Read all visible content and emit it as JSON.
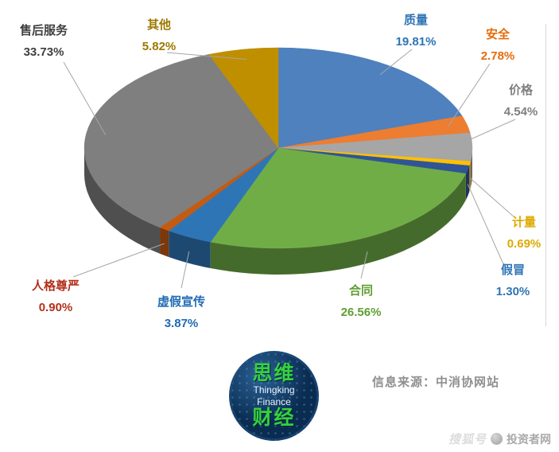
{
  "chart_data": {
    "type": "pie",
    "style": "3d-pie",
    "title": "",
    "legend_position": "none",
    "start_angle_deg": 0,
    "direction": "clockwise",
    "slices": [
      {
        "label": "质量",
        "value": 19.81,
        "display": "19.81%",
        "color": "#4E81BD",
        "label_color": "#2E74B5"
      },
      {
        "label": "安全",
        "value": 2.78,
        "display": "2.78%",
        "color": "#ED7D31",
        "label_color": "#E46C0A"
      },
      {
        "label": "价格",
        "value": 4.54,
        "display": "4.54%",
        "color": "#A6A6A6",
        "label_color": "#7F7F7F"
      },
      {
        "label": "计量",
        "value": 0.69,
        "display": "0.69%",
        "color": "#FFC000",
        "label_color": "#DDAA00"
      },
      {
        "label": "假冒",
        "value": 1.3,
        "display": "1.30%",
        "color": "#2F5597",
        "label_color": "#2E74B5"
      },
      {
        "label": "合同",
        "value": 26.56,
        "display": "26.56%",
        "color": "#70AD47",
        "label_color": "#5F9E32"
      },
      {
        "label": "虚假宣传",
        "value": 3.87,
        "display": "3.87%",
        "color": "#2E75B6",
        "label_color": "#1F6BB4"
      },
      {
        "label": "人格尊严",
        "value": 0.9,
        "display": "0.90%",
        "color": "#C55A11",
        "label_color": "#B3301B"
      },
      {
        "label": "售后服务",
        "value": 33.73,
        "display": "33.73%",
        "color": "#7F7F7F",
        "label_color": "#3F3F3F"
      },
      {
        "label": "其他",
        "value": 5.82,
        "display": "5.82%",
        "color": "#BF8F00",
        "label_color": "#9C7A00"
      }
    ]
  },
  "footer": {
    "source": "信息来源：中消协网站"
  },
  "logo": {
    "line1": "思维",
    "line2": "Thingking",
    "line3": "Finance",
    "line4": "财经",
    "bg_color": "#0a2c50",
    "accent_color": "#35d23c"
  },
  "watermark": {
    "prefix": "搜狐号",
    "name": "投资者网"
  }
}
